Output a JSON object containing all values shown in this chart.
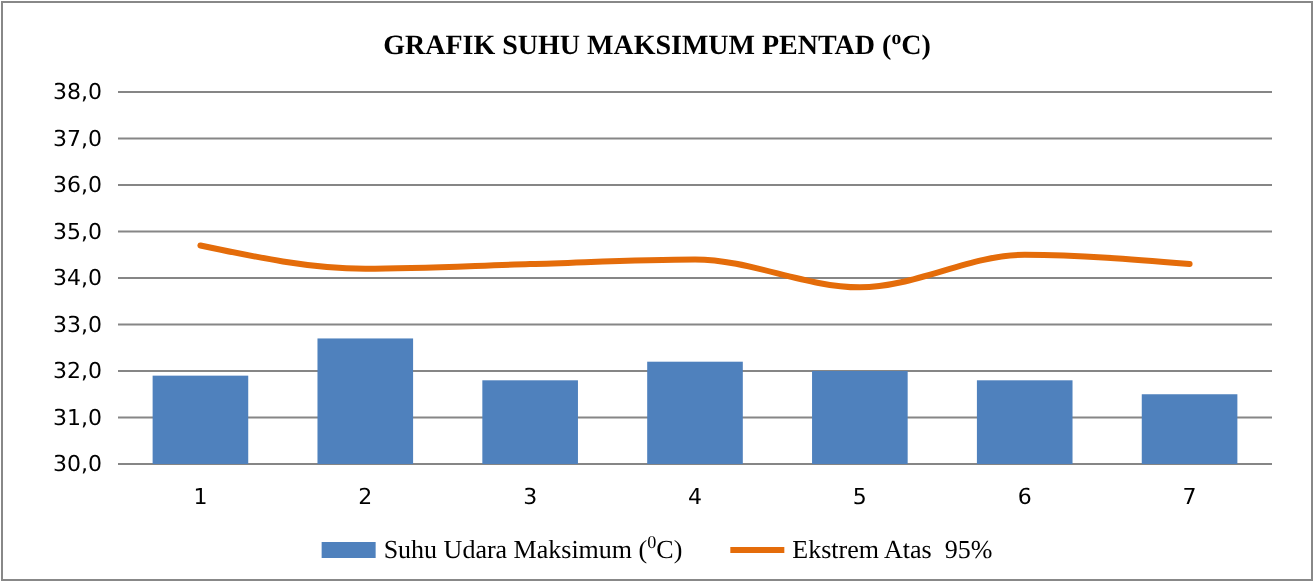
{
  "chart_data": {
    "type": "bar",
    "title": "GRAFIK SUHU MAKSIMUM PENTAD ($^{o}$C)",
    "categories": [
      "1",
      "2",
      "3",
      "4",
      "5",
      "6",
      "7"
    ],
    "series": [
      {
        "name": "Suhu Udara Maksimum ($^{0}$C)",
        "color": "#4f81bd",
        "values": [
          31.9,
          32.7,
          31.8,
          32.2,
          32.0,
          31.8,
          31.5
        ]
      },
      {
        "name": "Ekstrem Atas  95%",
        "type": "line",
        "color": "#e46c0a",
        "values": [
          34.7,
          34.2,
          34.3,
          34.4,
          33.8,
          34.5,
          34.3
        ]
      }
    ],
    "ylim": [
      30,
      38
    ],
    "yticks": [
      {
        "value": 30,
        "label": "30,0"
      },
      {
        "value": 31,
        "label": "31,0"
      },
      {
        "value": 32,
        "label": "32,0"
      },
      {
        "value": 33,
        "label": "33,0"
      },
      {
        "value": 34,
        "label": "34,0"
      },
      {
        "value": 35,
        "label": "35,0"
      },
      {
        "value": 36,
        "label": "36,0"
      },
      {
        "value": 37,
        "label": "37,0"
      },
      {
        "value": 38,
        "label": "38,0"
      }
    ],
    "grid": "y",
    "legend": "bottom",
    "marker": "none"
  }
}
